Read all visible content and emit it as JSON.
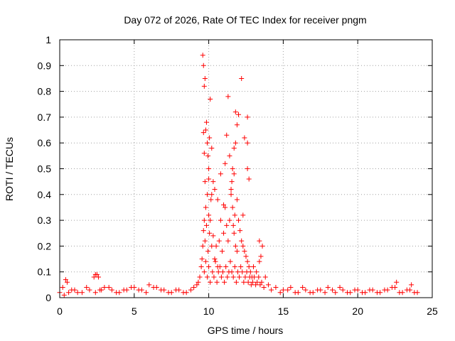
{
  "chart_data": {
    "type": "scatter",
    "title": "Day 072 of 2026, Rate Of TEC Index for receiver pngm",
    "xlabel": "GPS time / hours",
    "ylabel": "ROTI / TECUs",
    "xlim": [
      0,
      25
    ],
    "ylim": [
      0,
      1
    ],
    "x_ticks": [
      0,
      5,
      10,
      15,
      20,
      25
    ],
    "x_tick_labels": [
      "0",
      "5",
      "10",
      "15",
      "20",
      "25"
    ],
    "y_ticks": [
      0,
      0.1,
      0.2,
      0.3,
      0.4,
      0.5,
      0.6,
      0.7,
      0.8,
      0.9,
      1
    ],
    "y_tick_labels": [
      "0",
      "0.1",
      "0.2",
      "0.3",
      "0.4",
      "0.5",
      "0.6",
      "0.7",
      "0.8",
      "0.9",
      "1"
    ],
    "grid": true,
    "marker": "plus",
    "color": "#ff0000",
    "series": [
      {
        "name": "ROTI",
        "x": [
          0.0,
          0.3,
          0.4,
          0.6,
          1.0,
          1.5,
          2.0,
          2.3,
          2.5,
          2.7,
          3.0,
          3.5,
          4.0,
          4.5,
          5.0,
          5.5,
          6.0,
          6.5,
          7.0,
          7.5,
          8.0,
          8.5,
          9.0,
          9.3,
          9.5,
          9.6,
          9.65,
          9.7,
          9.75,
          9.8,
          9.85,
          9.9,
          9.95,
          10.0,
          10.05,
          10.1,
          10.15,
          10.2,
          10.3,
          10.4,
          10.5,
          10.6,
          10.7,
          10.8,
          10.9,
          11.0,
          11.1,
          11.2,
          11.3,
          11.4,
          11.5,
          11.55,
          11.6,
          11.65,
          11.7,
          11.75,
          11.8,
          11.9,
          12.0,
          12.1,
          12.2,
          12.3,
          12.4,
          12.5,
          12.6,
          12.7,
          12.8,
          12.9,
          13.0,
          13.2,
          13.4,
          13.6,
          13.8,
          14.0,
          14.5,
          15.0,
          15.5,
          16.0,
          16.5,
          17.0,
          17.5,
          18.0,
          18.5,
          19.0,
          19.5,
          20.0,
          20.5,
          21.0,
          21.5,
          22.0,
          22.5,
          23.0,
          23.5,
          24.0,
          0.2,
          0.8,
          1.2,
          1.8,
          2.4,
          2.8,
          3.3,
          3.8,
          4.3,
          4.8,
          5.3,
          5.8,
          6.3,
          6.8,
          7.3,
          7.8,
          8.3,
          8.8,
          9.2,
          9.4,
          9.55,
          9.7,
          9.8,
          9.9,
          10.0,
          10.1,
          10.25,
          10.35,
          10.45,
          10.55,
          10.65,
          10.75,
          10.85,
          10.95,
          11.05,
          11.15,
          11.25,
          11.35,
          11.45,
          11.55,
          11.65,
          11.75,
          11.85,
          11.95,
          12.05,
          12.15,
          12.25,
          12.35,
          12.45,
          12.55,
          12.65,
          12.75,
          12.85,
          12.95,
          13.05,
          13.15,
          13.25,
          13.35,
          13.45,
          13.55,
          13.7,
          14.2,
          14.8,
          15.3,
          15.8,
          16.3,
          16.8,
          17.3,
          17.8,
          18.3,
          18.8,
          19.3,
          19.8,
          20.3,
          20.8,
          21.3,
          21.8,
          22.3,
          22.8,
          23.3,
          23.8,
          9.6,
          9.65,
          9.7,
          9.75,
          9.8,
          9.85,
          9.9,
          9.95,
          10.0,
          10.05,
          10.1,
          10.2,
          10.3,
          10.4,
          10.6,
          10.8,
          11.0,
          11.2,
          11.3,
          11.4,
          11.6,
          11.7,
          11.8,
          11.9,
          12.0,
          12.2,
          12.4,
          12.6,
          13.4,
          13.5,
          9.65,
          9.7,
          9.75,
          10.0,
          10.2,
          11.1,
          11.5,
          11.7,
          11.8,
          11.9,
          12.3,
          12.6,
          12.6,
          12.7,
          2.4,
          2.6,
          0.5,
          23.6,
          22.6
        ],
        "y": [
          0.02,
          0.01,
          0.07,
          0.02,
          0.03,
          0.02,
          0.03,
          0.08,
          0.09,
          0.03,
          0.04,
          0.03,
          0.02,
          0.03,
          0.04,
          0.03,
          0.05,
          0.04,
          0.03,
          0.02,
          0.03,
          0.02,
          0.04,
          0.06,
          0.12,
          0.2,
          0.26,
          0.3,
          0.22,
          0.35,
          0.28,
          0.4,
          0.18,
          0.32,
          0.25,
          0.3,
          0.38,
          0.2,
          0.24,
          0.15,
          0.2,
          0.12,
          0.22,
          0.3,
          0.18,
          0.25,
          0.35,
          0.28,
          0.22,
          0.3,
          0.4,
          0.45,
          0.35,
          0.28,
          0.25,
          0.32,
          0.2,
          0.18,
          0.3,
          0.26,
          0.22,
          0.2,
          0.18,
          0.16,
          0.14,
          0.12,
          0.1,
          0.08,
          0.12,
          0.1,
          0.14,
          0.2,
          0.08,
          0.05,
          0.04,
          0.03,
          0.04,
          0.02,
          0.03,
          0.02,
          0.03,
          0.04,
          0.02,
          0.03,
          0.02,
          0.03,
          0.02,
          0.03,
          0.02,
          0.03,
          0.04,
          0.02,
          0.03,
          0.02,
          0.04,
          0.03,
          0.02,
          0.04,
          0.02,
          0.03,
          0.04,
          0.02,
          0.03,
          0.04,
          0.03,
          0.02,
          0.04,
          0.03,
          0.02,
          0.03,
          0.02,
          0.03,
          0.05,
          0.08,
          0.15,
          0.1,
          0.14,
          0.08,
          0.12,
          0.06,
          0.1,
          0.08,
          0.14,
          0.06,
          0.1,
          0.12,
          0.08,
          0.1,
          0.06,
          0.12,
          0.08,
          0.1,
          0.14,
          0.1,
          0.08,
          0.12,
          0.06,
          0.1,
          0.08,
          0.12,
          0.1,
          0.06,
          0.08,
          0.1,
          0.06,
          0.08,
          0.05,
          0.06,
          0.08,
          0.05,
          0.06,
          0.08,
          0.05,
          0.06,
          0.04,
          0.03,
          0.02,
          0.03,
          0.02,
          0.04,
          0.02,
          0.03,
          0.02,
          0.03,
          0.04,
          0.02,
          0.03,
          0.02,
          0.03,
          0.02,
          0.03,
          0.04,
          0.02,
          0.03,
          0.02,
          0.94,
          0.9,
          0.82,
          0.85,
          0.65,
          0.68,
          0.6,
          0.55,
          0.5,
          0.62,
          0.77,
          0.58,
          0.45,
          0.42,
          0.38,
          0.48,
          0.36,
          0.63,
          0.78,
          0.55,
          0.5,
          0.58,
          0.72,
          0.67,
          0.71,
          0.85,
          0.62,
          0.5,
          0.22,
          0.16,
          0.64,
          0.56,
          0.45,
          0.46,
          0.4,
          0.52,
          0.42,
          0.48,
          0.6,
          0.38,
          0.32,
          0.7,
          0.6,
          0.46,
          0.09,
          0.08,
          0.06,
          0.05,
          0.06
        ]
      }
    ]
  }
}
